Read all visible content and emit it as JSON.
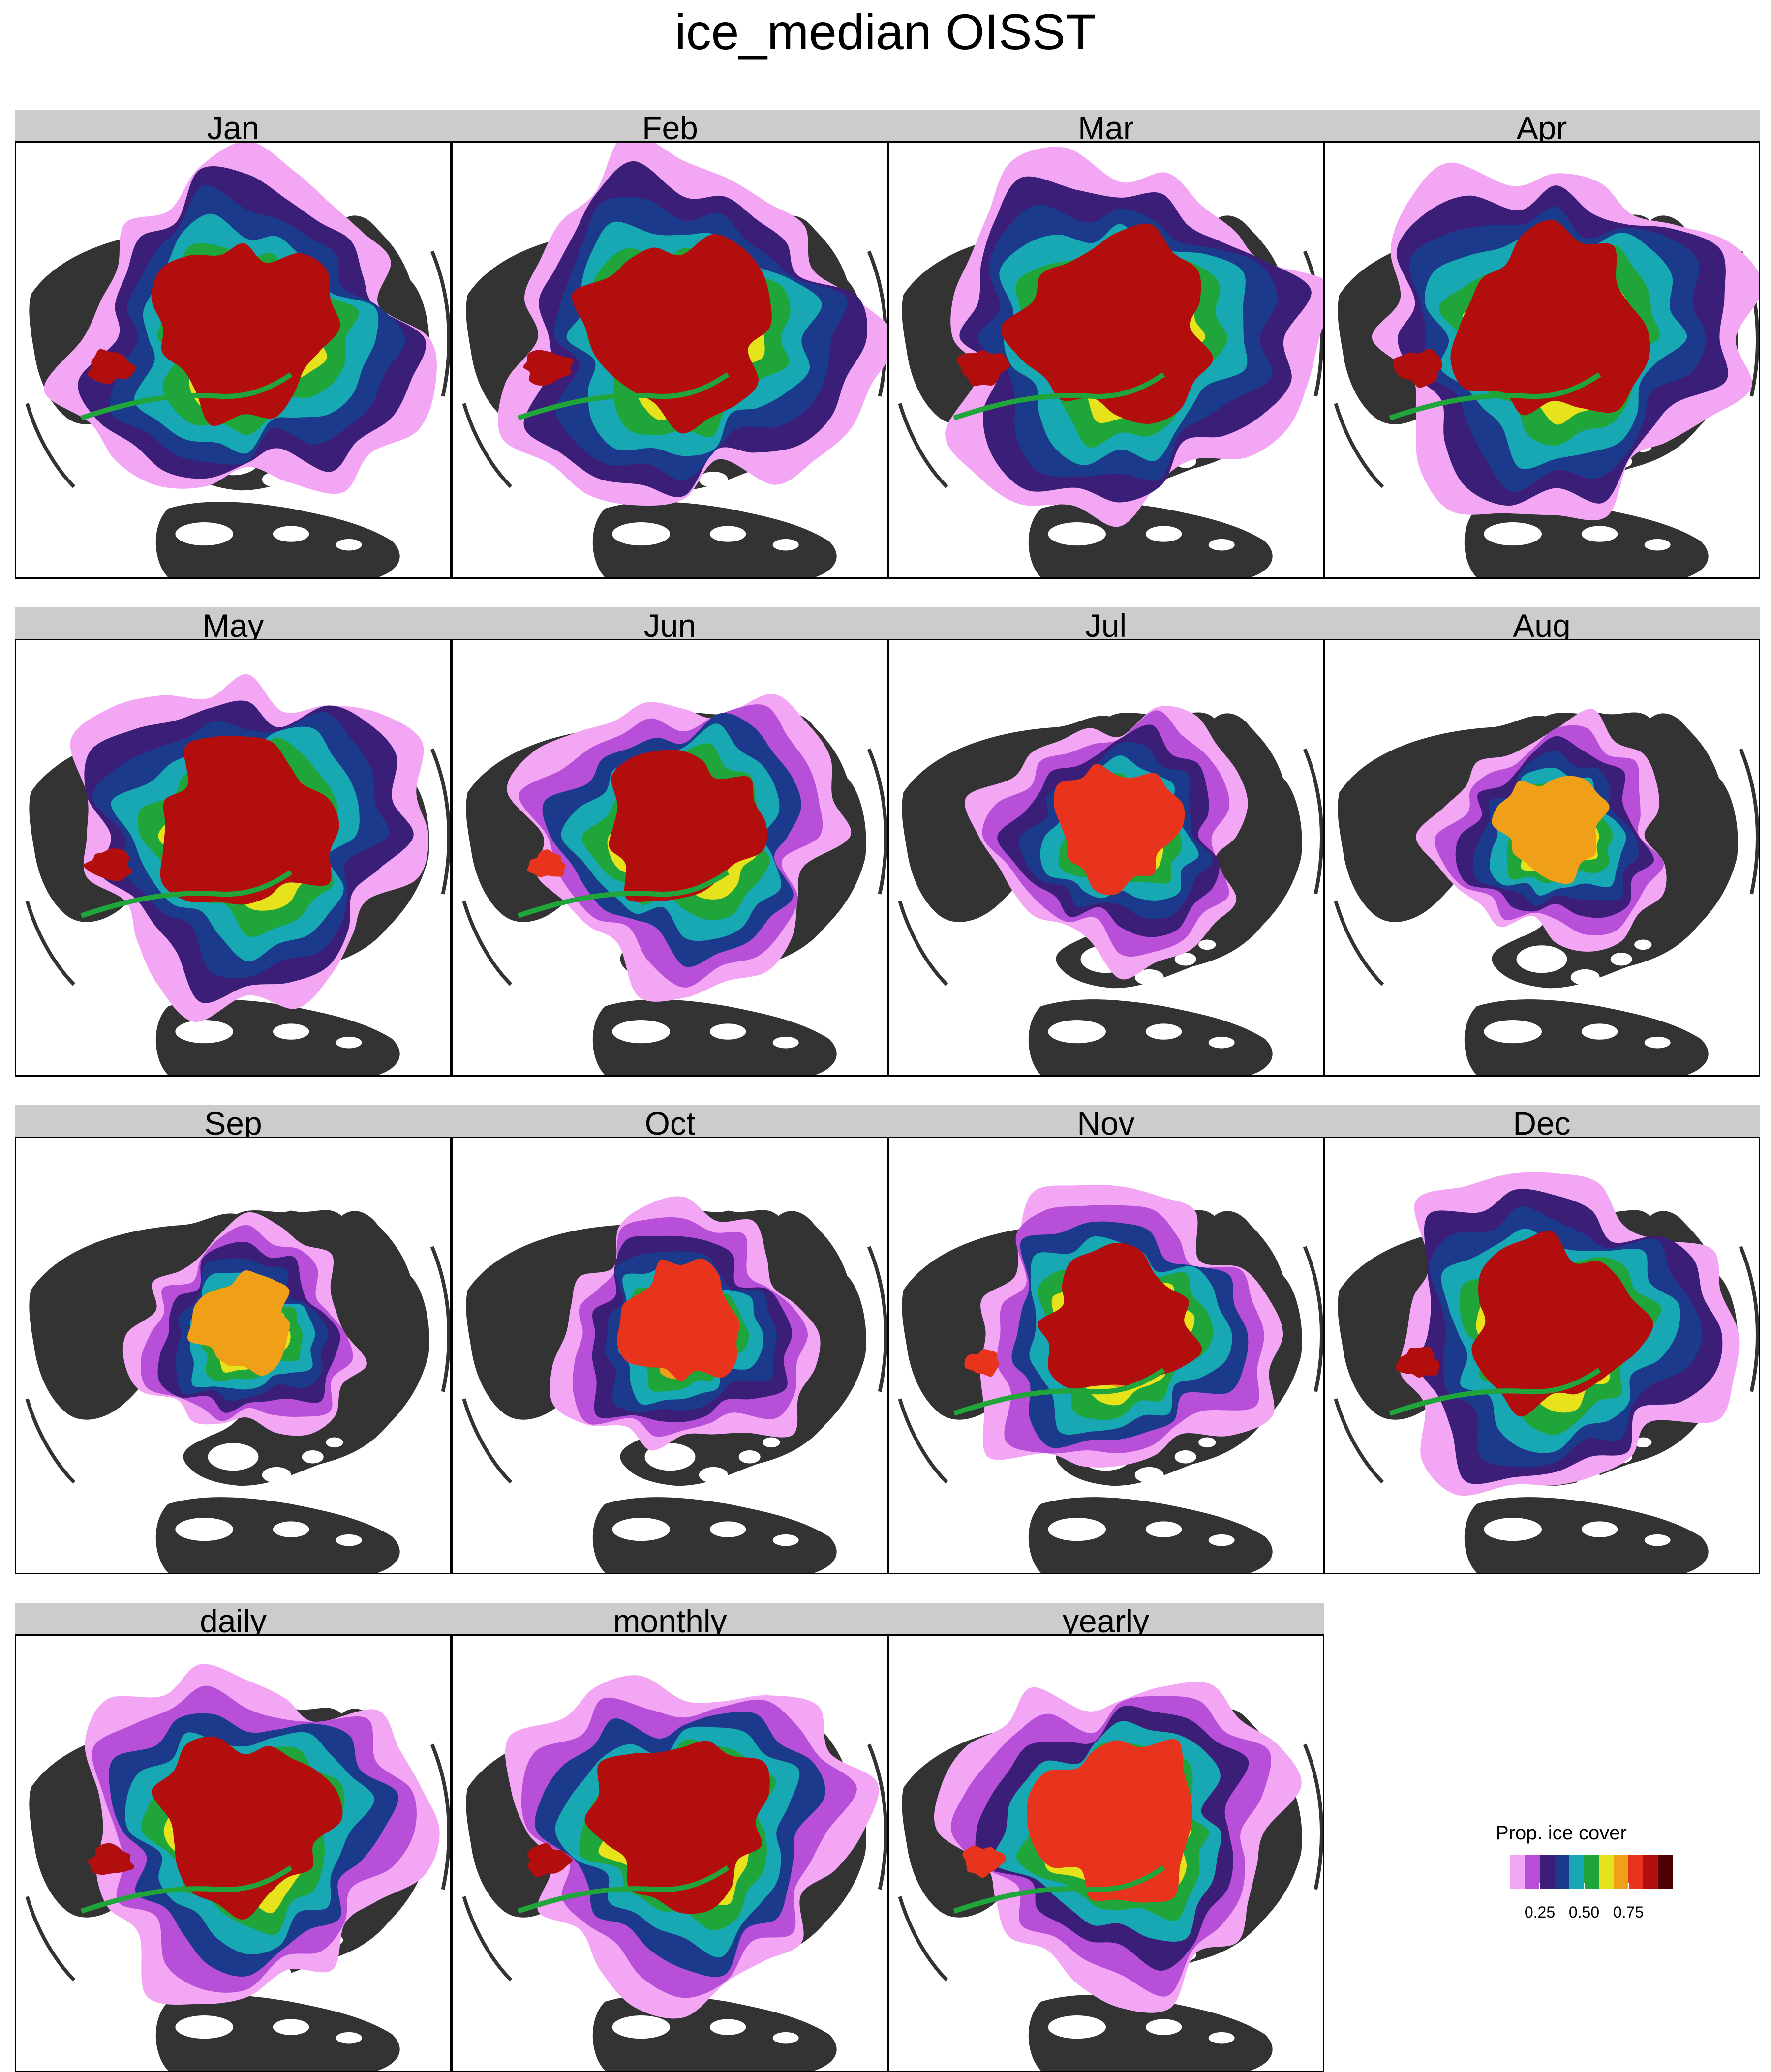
{
  "title": "ice_median OISST",
  "chart_data": {
    "type": "heatmap",
    "title": "ice_median OISST",
    "panels": [
      {
        "label": "Jan",
        "extent": 0.88,
        "intensity": 0.93
      },
      {
        "label": "Feb",
        "extent": 0.93,
        "intensity": 0.94
      },
      {
        "label": "Mar",
        "extent": 0.96,
        "intensity": 0.95
      },
      {
        "label": "Apr",
        "extent": 0.95,
        "intensity": 0.95
      },
      {
        "label": "May",
        "extent": 0.86,
        "intensity": 0.93
      },
      {
        "label": "Jun",
        "extent": 0.72,
        "intensity": 0.88
      },
      {
        "label": "Jul",
        "extent": 0.52,
        "intensity": 0.78
      },
      {
        "label": "Aug",
        "extent": 0.4,
        "intensity": 0.74
      },
      {
        "label": "Sep",
        "extent": 0.36,
        "intensity": 0.74
      },
      {
        "label": "Oct",
        "extent": 0.5,
        "intensity": 0.82
      },
      {
        "label": "Nov",
        "extent": 0.68,
        "intensity": 0.9
      },
      {
        "label": "Dec",
        "extent": 0.82,
        "intensity": 0.93
      },
      {
        "label": "daily",
        "extent": 0.84,
        "intensity": 0.92
      },
      {
        "label": "monthly",
        "extent": 0.84,
        "intensity": 0.92
      },
      {
        "label": "yearly",
        "extent": 0.8,
        "intensity": 0.86
      }
    ],
    "legend": {
      "title": "Prop. ice cover",
      "range": [
        0,
        1
      ],
      "ticks": [
        0.25,
        0.5,
        0.75
      ],
      "tick_labels": [
        "0.25",
        "0.50",
        "0.75"
      ],
      "colors": [
        "#ffffff",
        "#f2a6f4",
        "#b84fd8",
        "#3b1e78",
        "#1b3a8c",
        "#17a8b4",
        "#1fa53a",
        "#e6e21c",
        "#f0a018",
        "#e8341c",
        "#b20e0e",
        "#4e0000"
      ]
    },
    "land_color": "#333333",
    "ocean_color": "#ffffff",
    "layout": {
      "columns": 4,
      "rows": 4
    }
  }
}
